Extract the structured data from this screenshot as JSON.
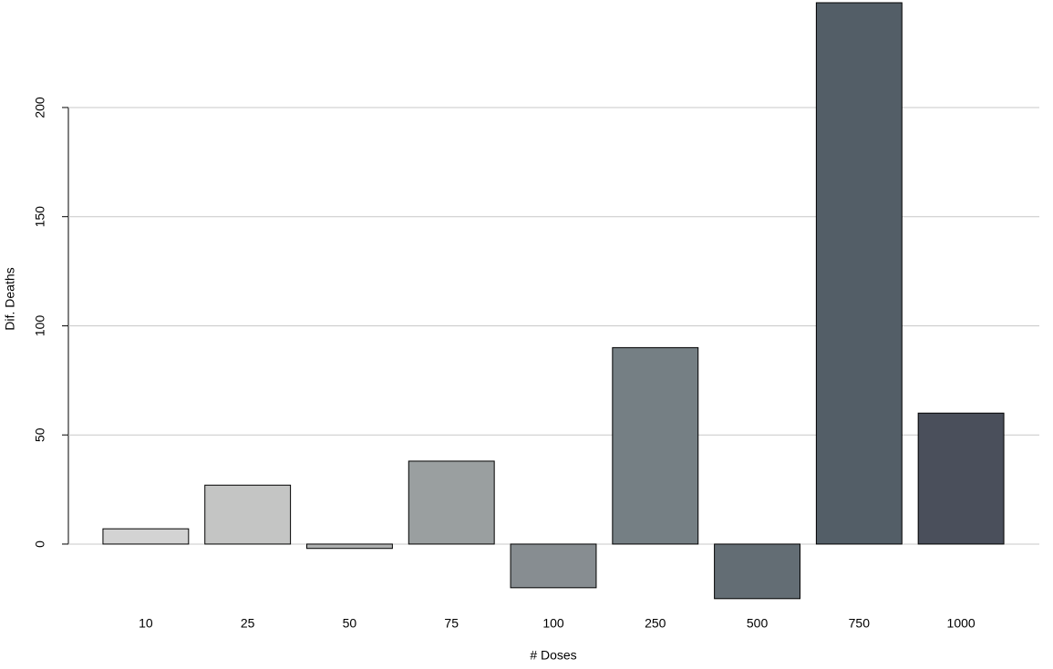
{
  "chart_data": {
    "type": "bar",
    "x_label": "# Doses",
    "y_label": "Dif. Deaths",
    "categories": [
      "10",
      "25",
      "50",
      "75",
      "100",
      "250",
      "500",
      "750",
      "1000"
    ],
    "values": [
      7,
      27,
      -2,
      38,
      -20,
      90,
      -25,
      248,
      60
    ],
    "colors": [
      "#d3d3d3",
      "#c4c5c4",
      "#afb1b1",
      "#9a9fa0",
      "#878d91",
      "#757f84",
      "#636d74",
      "#535e67",
      "#4a4f5b"
    ],
    "ylim": [
      -28,
      249
    ],
    "yticks": [
      0,
      50,
      100,
      150,
      200
    ],
    "grid": true
  }
}
